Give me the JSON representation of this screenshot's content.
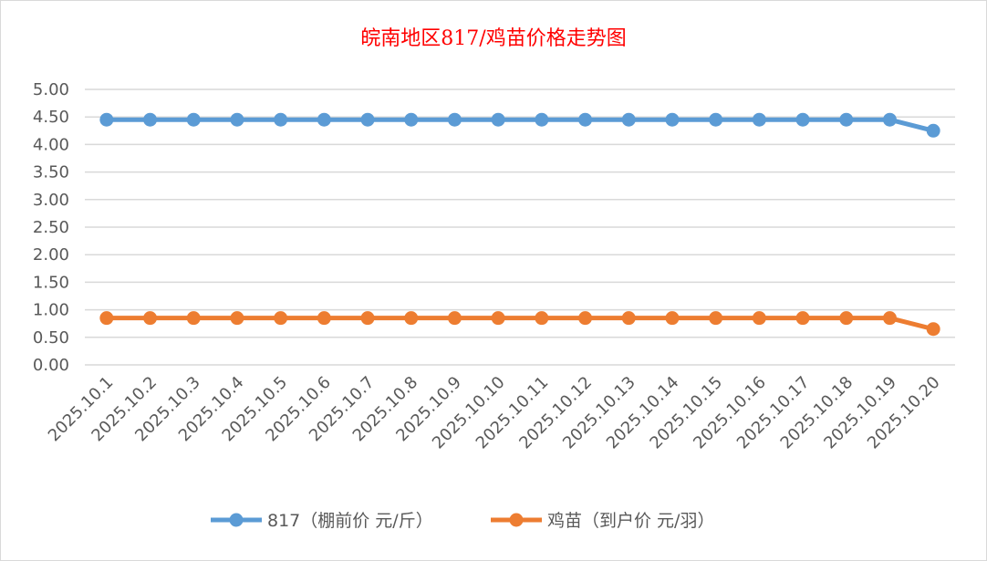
{
  "chart_data": {
    "type": "line",
    "title": "皖南地区817/鸡苗价格走势图",
    "xlabel": "",
    "ylabel": "",
    "ylim": [
      0,
      5
    ],
    "ytick_step": 0.5,
    "grid": true,
    "legend_position": "bottom",
    "categories": [
      "2025.10.1",
      "2025.10.2",
      "2025.10.3",
      "2025.10.4",
      "2025.10.5",
      "2025.10.6",
      "2025.10.7",
      "2025.10.8",
      "2025.10.9",
      "2025.10.10",
      "2025.10.11",
      "2025.10.12",
      "2025.10.13",
      "2025.10.14",
      "2025.10.15",
      "2025.10.16",
      "2025.10.17",
      "2025.10.18",
      "2025.10.19",
      "2025.10.20"
    ],
    "series": [
      {
        "name": "817（棚前价 元/斤）",
        "color": "#5b9bd5",
        "values": [
          4.45,
          4.45,
          4.45,
          4.45,
          4.45,
          4.45,
          4.45,
          4.45,
          4.45,
          4.45,
          4.45,
          4.45,
          4.45,
          4.45,
          4.45,
          4.45,
          4.45,
          4.45,
          4.45,
          4.25
        ]
      },
      {
        "name": "鸡苗（到户价 元/羽）",
        "color": "#ed7d31",
        "values": [
          0.85,
          0.85,
          0.85,
          0.85,
          0.85,
          0.85,
          0.85,
          0.85,
          0.85,
          0.85,
          0.85,
          0.85,
          0.85,
          0.85,
          0.85,
          0.85,
          0.85,
          0.85,
          0.85,
          0.65
        ]
      }
    ]
  }
}
